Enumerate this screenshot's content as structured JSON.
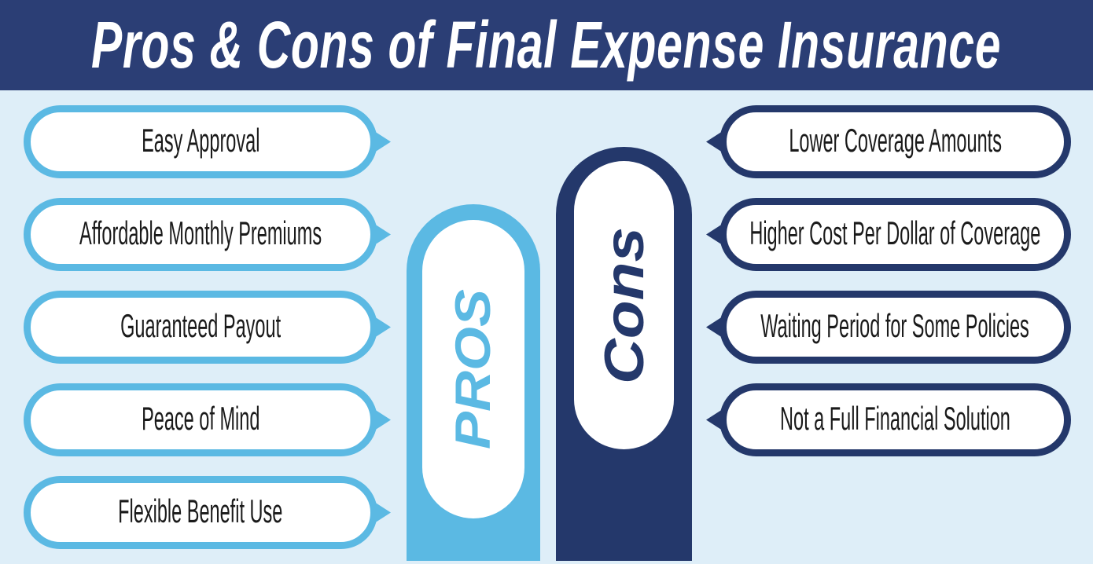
{
  "title": "Pros & Cons of Final Expense Insurance",
  "pros": {
    "label": "PROS",
    "items": [
      "Easy Approval",
      "Affordable Monthly Premiums",
      "Guaranteed Payout",
      "Peace of Mind",
      "Flexible Benefit Use"
    ]
  },
  "cons": {
    "label": "Cons",
    "items": [
      "Lower Coverage Amounts",
      "Higher Cost Per Dollar of Coverage",
      "Waiting Period for Some Policies",
      "Not a Full Financial Solution"
    ]
  },
  "colors": {
    "navy": "#2b3e75",
    "navy_dark": "#24386b",
    "light_blue": "#5bb9e3",
    "background": "#deeef8",
    "text": "#1a1a1a",
    "white": "#ffffff"
  }
}
